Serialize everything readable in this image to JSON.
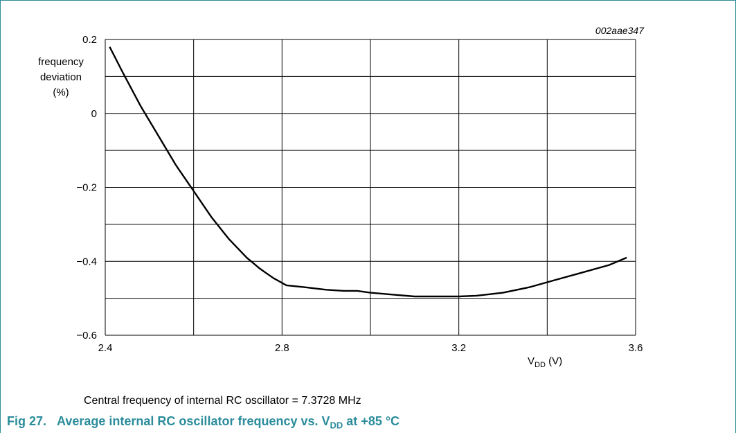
{
  "chart_ref": "002aae347",
  "note": "Central frequency of internal RC oscillator = 7.3728 MHz",
  "caption": {
    "fig": "Fig 27.",
    "text_prefix": "Average internal RC oscillator frequency vs. V",
    "sub": "DD",
    "text_suffix": " at +85 °C"
  },
  "chart_data": {
    "type": "line",
    "ylabel_lines": [
      "frequency",
      "deviation",
      "(%)"
    ],
    "xlabel_main": "V",
    "xlabel_sub": "DD",
    "xlabel_unit": " (V)",
    "xlim": [
      2.4,
      3.6
    ],
    "ylim": [
      -0.6,
      0.2
    ],
    "x_ticks": [
      "2.4",
      "2.8",
      "3.2",
      "3.6"
    ],
    "x_tick_values": [
      2.4,
      2.8,
      3.2,
      3.6
    ],
    "y_ticks": [
      "0.2",
      "0",
      "−0.2",
      "−0.4",
      "−0.6"
    ],
    "y_tick_values": [
      0.2,
      0,
      -0.2,
      -0.4,
      -0.6
    ],
    "grid_x": [
      2.4,
      2.6,
      2.8,
      3.0,
      3.2,
      3.4,
      3.6
    ],
    "grid_y": [
      0.2,
      0.1,
      0,
      -0.1,
      -0.2,
      -0.3,
      -0.4,
      -0.5,
      -0.6
    ],
    "series": [
      {
        "x": [
          2.41,
          2.44,
          2.48,
          2.52,
          2.56,
          2.6,
          2.64,
          2.68,
          2.72,
          2.75,
          2.78,
          2.81,
          2.85,
          2.9,
          2.94,
          2.97,
          3.0,
          3.05,
          3.1,
          3.15,
          3.2,
          3.24,
          3.3,
          3.36,
          3.42,
          3.48,
          3.54,
          3.58
        ],
        "y": [
          0.18,
          0.11,
          0.02,
          -0.06,
          -0.14,
          -0.21,
          -0.28,
          -0.34,
          -0.39,
          -0.42,
          -0.445,
          -0.465,
          -0.47,
          -0.477,
          -0.48,
          -0.48,
          -0.485,
          -0.49,
          -0.495,
          -0.495,
          -0.495,
          -0.493,
          -0.485,
          -0.47,
          -0.45,
          -0.43,
          -0.41,
          -0.39
        ]
      }
    ]
  }
}
